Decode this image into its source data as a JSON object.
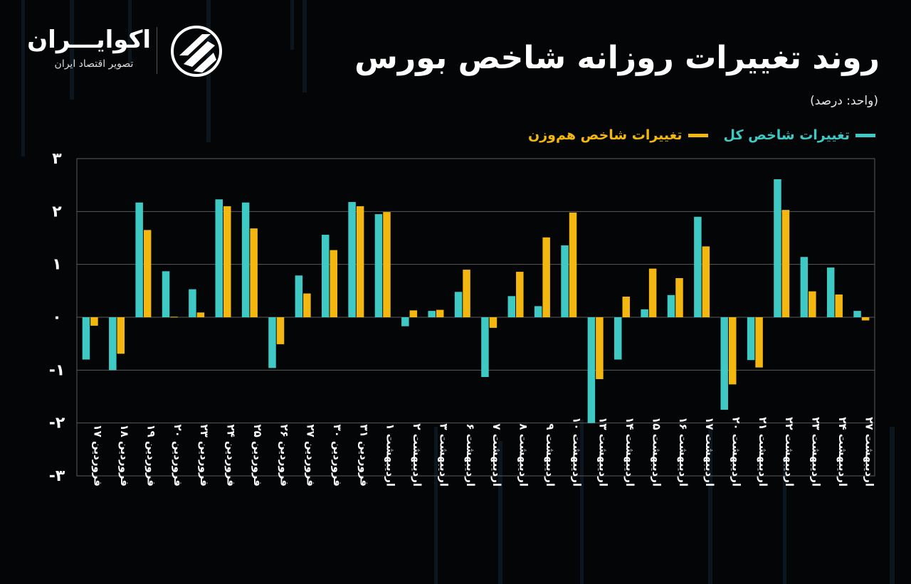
{
  "header": {
    "title": "روند تغییرات روزانه شاخص بورس",
    "unit": "(واحد: درصد)"
  },
  "logo": {
    "name": "اکوایـــران",
    "tagline": "تصویر اقتصاد ایران",
    "icon": "ecoiran-stripes-icon"
  },
  "colors": {
    "series_total": "#3ec9c4",
    "series_equal": "#f3b70f",
    "background": "#040507",
    "grid": "#5a5a5a"
  },
  "chart_data": {
    "type": "bar",
    "title": "روند تغییرات روزانه شاخص بورس",
    "ylabel": "(واحد: درصد)",
    "ylim": [
      -3,
      3
    ],
    "yticks": [
      3,
      2,
      1,
      0,
      -1,
      -2,
      -3
    ],
    "ytick_labels": [
      "۳",
      "۲",
      "۱",
      "۰",
      "-۱",
      "-۲",
      "-۳"
    ],
    "grid": true,
    "legend_position": "top-right",
    "categories": [
      "فروردین ۱۷",
      "فروردین ۱۸",
      "فروردین ۱۹",
      "فروردین ۲۰",
      "فروردین ۲۳",
      "فروردین ۲۴",
      "فروردین ۲۵",
      "فروردین ۲۶",
      "فروردین ۲۷",
      "فروردین ۳۰",
      "فروردین ۳۱",
      "اردیبهشت ۱",
      "اردیبهشت ۲",
      "اردیبهشت ۳",
      "اردیبهشت ۶",
      "اردیبهشت ۷",
      "اردیبهشت ۸",
      "اردیبهشت ۹",
      "اردیبهشت ۱۰",
      "اردیبهشت ۱۳",
      "اردیبهشت ۱۴",
      "اردیبهشت ۱۵",
      "اردیبهشت ۱۶",
      "اردیبهشت ۱۷",
      "اردیبهشت ۲۰",
      "اردیبهشت ۲۱",
      "اردیبهشت ۲۲",
      "اردیبهشت ۲۳",
      "اردیبهشت ۲۴",
      "اردیبهشت ۲۷"
    ],
    "series": [
      {
        "name": "تغییرات شاخص کل",
        "color": "#3ec9c4",
        "values": [
          -0.8,
          -1.0,
          2.17,
          0.87,
          0.53,
          2.23,
          2.17,
          -0.96,
          0.79,
          1.56,
          2.18,
          1.95,
          -0.17,
          0.12,
          0.48,
          -1.13,
          0.4,
          0.21,
          1.36,
          -2.0,
          -0.8,
          0.15,
          0.42,
          1.9,
          -1.75,
          -0.81,
          2.61,
          1.14,
          0.94,
          0.12
        ]
      },
      {
        "name": "تغییرات شاخص هم‌وزن",
        "color": "#f3b70f",
        "values": [
          -0.16,
          -0.69,
          1.65,
          0.01,
          0.09,
          2.1,
          1.68,
          -0.51,
          0.45,
          1.27,
          2.1,
          1.99,
          0.13,
          0.14,
          0.9,
          -0.2,
          0.86,
          1.51,
          1.98,
          -1.17,
          0.39,
          0.92,
          0.74,
          1.34,
          -1.27,
          -0.95,
          2.03,
          0.49,
          0.43,
          -0.06
        ]
      }
    ]
  }
}
